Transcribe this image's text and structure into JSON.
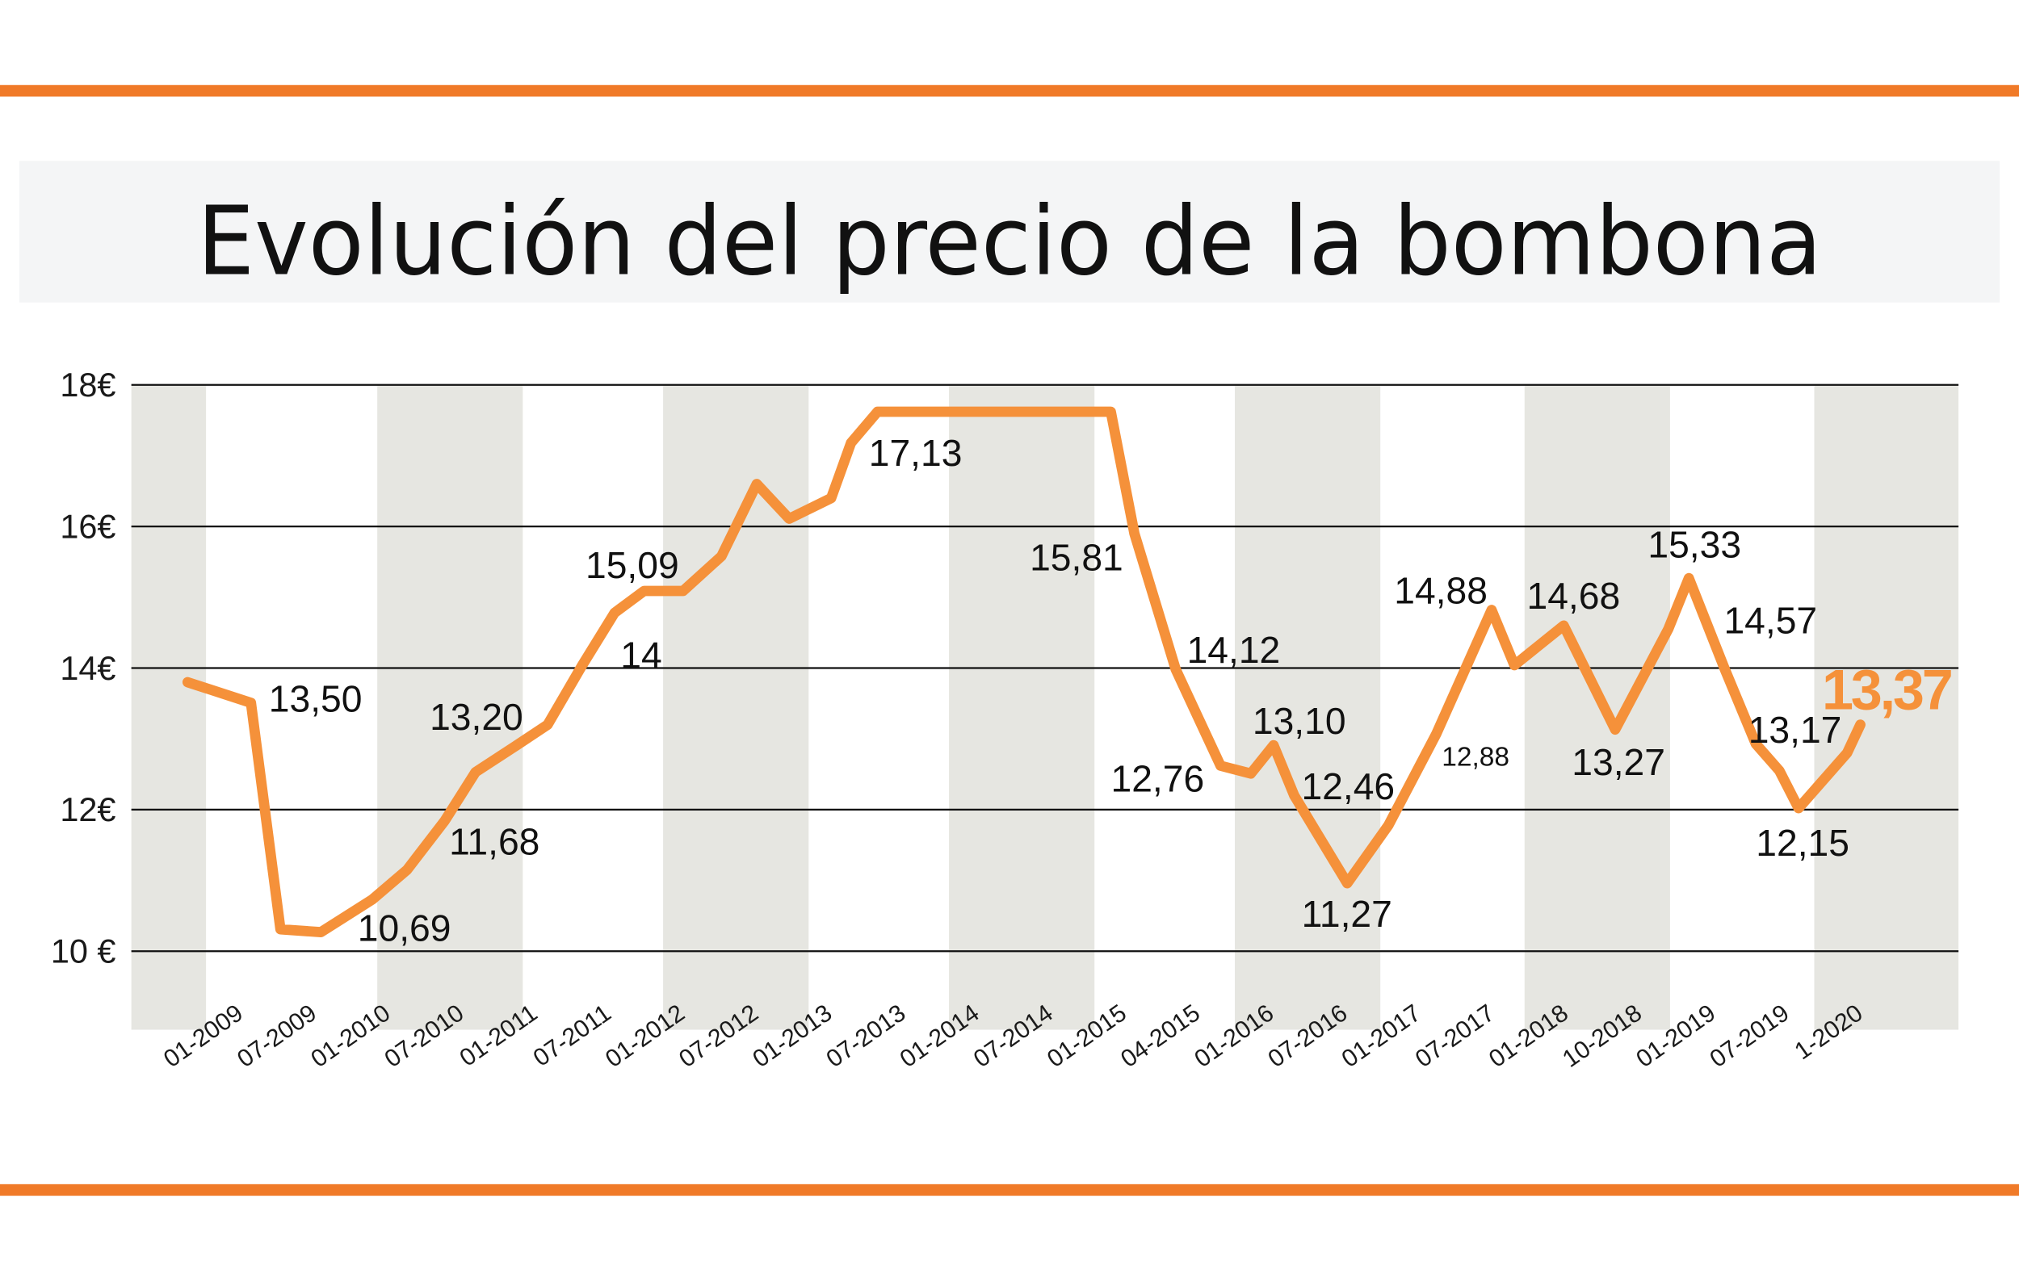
{
  "chart_data": {
    "type": "line",
    "title": "Evolución del precio de la bombona",
    "xlabel": "",
    "ylabel": "",
    "y_ticks": [
      "18€",
      "16€",
      "14€",
      "12€",
      "10 €"
    ],
    "y_tick_values": [
      18,
      16,
      14,
      12,
      10
    ],
    "ylim": [
      9,
      18
    ],
    "categories": [
      "01-2009",
      "07-2009",
      "01-2010",
      "07-2010",
      "01-2011",
      "07-2011",
      "01-2012",
      "07-2012",
      "01-2013",
      "07-2013",
      "01-2014",
      "07-2014",
      "01-2015",
      "04-2015",
      "01-2016",
      "07-2016",
      "01-2017",
      "07-2017",
      "01-2018",
      "10-2018",
      "01-2019",
      "07-2019",
      "1-2020"
    ],
    "grid": true,
    "alternating_bands": true,
    "series": [
      {
        "points": [
          {
            "x": -0.25,
            "y": 13.8
          },
          {
            "x": 0.61,
            "y": 13.51
          },
          {
            "x": 1.01,
            "y": 10.31
          },
          {
            "x": 1.56,
            "y": 10.27
          },
          {
            "x": 2.26,
            "y": 10.73
          },
          {
            "x": 2.73,
            "y": 11.15
          },
          {
            "x": 3.24,
            "y": 11.84
          },
          {
            "x": 3.66,
            "y": 12.53
          },
          {
            "x": 4.22,
            "y": 12.91
          },
          {
            "x": 4.64,
            "y": 13.2
          },
          {
            "x": 5.11,
            "y": 14.04
          },
          {
            "x": 5.55,
            "y": 14.78
          },
          {
            "x": 5.95,
            "y": 15.09
          },
          {
            "x": 6.48,
            "y": 15.09
          },
          {
            "x": 7.0,
            "y": 15.58
          },
          {
            "x": 7.48,
            "y": 16.6
          },
          {
            "x": 7.92,
            "y": 16.11
          },
          {
            "x": 8.49,
            "y": 16.4
          },
          {
            "x": 8.76,
            "y": 17.18
          },
          {
            "x": 9.12,
            "y": 17.62
          },
          {
            "x": 12.29,
            "y": 17.62
          },
          {
            "x": 12.61,
            "y": 15.9
          },
          {
            "x": 13.17,
            "y": 13.98
          },
          {
            "x": 13.78,
            "y": 12.62
          },
          {
            "x": 14.19,
            "y": 12.51
          },
          {
            "x": 14.5,
            "y": 12.91
          },
          {
            "x": 14.78,
            "y": 12.2
          },
          {
            "x": 15.5,
            "y": 10.96
          },
          {
            "x": 16.06,
            "y": 11.78
          },
          {
            "x": 16.71,
            "y": 13.07
          },
          {
            "x": 17.46,
            "y": 14.82
          },
          {
            "x": 17.77,
            "y": 14.04
          },
          {
            "x": 18.44,
            "y": 14.6
          },
          {
            "x": 19.14,
            "y": 13.13
          },
          {
            "x": 19.86,
            "y": 14.55
          },
          {
            "x": 20.14,
            "y": 15.27
          },
          {
            "x": 20.63,
            "y": 13.98
          },
          {
            "x": 21.05,
            "y": 12.93
          },
          {
            "x": 21.37,
            "y": 12.55
          },
          {
            "x": 21.63,
            "y": 12.02
          },
          {
            "x": 22.29,
            "y": 12.8
          },
          {
            "x": 22.47,
            "y": 13.2
          }
        ]
      }
    ],
    "data_labels": [
      "13,50",
      "10,69",
      "11,68",
      "13,20",
      "14",
      "15,09",
      "17,13",
      "15,81",
      "14,12",
      "12,76",
      "13,10",
      "12,46",
      "11,27",
      "14,88",
      "12,88",
      "14,68",
      "13,27",
      "15,33",
      "14,57",
      "13,17",
      "12,15",
      "13,37"
    ],
    "highlight_label": "13,37"
  },
  "colors": {
    "accent_bar": "#f07a28",
    "line": "#f5913a",
    "highlight": "#f5913a",
    "band": "#e6e6e1",
    "title_bg": "#f4f5f6",
    "grid": "#111111"
  }
}
